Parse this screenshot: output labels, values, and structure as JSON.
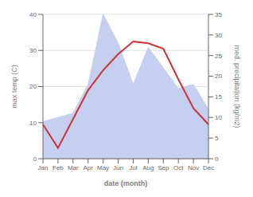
{
  "chart_data": {
    "type": "line",
    "xlabel": "date (month)",
    "ylabel": "max temp (C)",
    "y2label": "med. precipitation (kg/m2)",
    "categories": [
      "Jan",
      "Feb",
      "Mar",
      "Apr",
      "May",
      "Jun",
      "Jul",
      "Aug",
      "Sep",
      "Oct",
      "Nov",
      "Dec"
    ],
    "series": [
      {
        "type": "area",
        "axis": "y2",
        "color": "#c5cff0",
        "values": [
          9.0,
          10.0,
          11.0,
          18.0,
          35.0,
          28.0,
          18.0,
          27.0,
          22.0,
          17.0,
          18.0,
          12.0
        ]
      },
      {
        "type": "line",
        "color": "#cc3333",
        "values": [
          9.5,
          3.0,
          11.0,
          19.0,
          24.5,
          29.0,
          32.5,
          32.0,
          30.5,
          22.0,
          14.0,
          9.5
        ]
      }
    ],
    "ylim": [
      0,
      40
    ],
    "yticks": [
      0,
      10,
      20,
      30,
      40
    ],
    "y2lim": [
      0,
      35
    ],
    "y2ticks": [
      0,
      5,
      10,
      15,
      20,
      25,
      30,
      35
    ],
    "grid": true
  }
}
